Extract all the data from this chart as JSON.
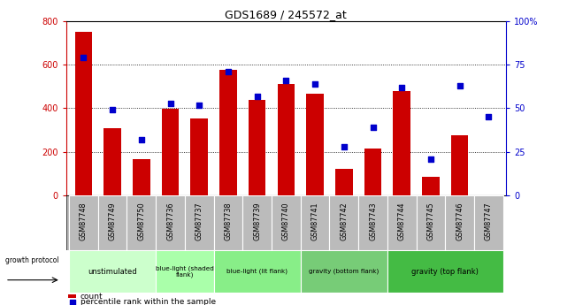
{
  "title": "GDS1689 / 245572_at",
  "samples": [
    "GSM87748",
    "GSM87749",
    "GSM87750",
    "GSM87736",
    "GSM87737",
    "GSM87738",
    "GSM87739",
    "GSM87740",
    "GSM87741",
    "GSM87742",
    "GSM87743",
    "GSM87744",
    "GSM87745",
    "GSM87746",
    "GSM87747"
  ],
  "counts": [
    750,
    310,
    165,
    398,
    355,
    578,
    440,
    510,
    465,
    120,
    215,
    480,
    85,
    275,
    0
  ],
  "percentiles": [
    79,
    49,
    32,
    53,
    52,
    71,
    57,
    66,
    64,
    28,
    39,
    62,
    21,
    63,
    45
  ],
  "groups": [
    {
      "label": "unstimulated",
      "start": 0,
      "end": 3,
      "color": "#ccffcc"
    },
    {
      "label": "blue-light (shaded\nflank)",
      "start": 3,
      "end": 5,
      "color": "#aaffaa"
    },
    {
      "label": "blue-light (lit flank)",
      "start": 5,
      "end": 8,
      "color": "#88ee88"
    },
    {
      "label": "gravity (bottom flank)",
      "start": 8,
      "end": 11,
      "color": "#77cc77"
    },
    {
      "label": "gravity (top flank)",
      "start": 11,
      "end": 15,
      "color": "#44bb44"
    }
  ],
  "bar_color": "#cc0000",
  "dot_color": "#0000cc",
  "ylim_left": [
    0,
    800
  ],
  "ylim_right": [
    0,
    100
  ],
  "yticks_left": [
    0,
    200,
    400,
    600,
    800
  ],
  "yticks_right": [
    0,
    25,
    50,
    75,
    100
  ],
  "header_bg": "#bbbbbb"
}
